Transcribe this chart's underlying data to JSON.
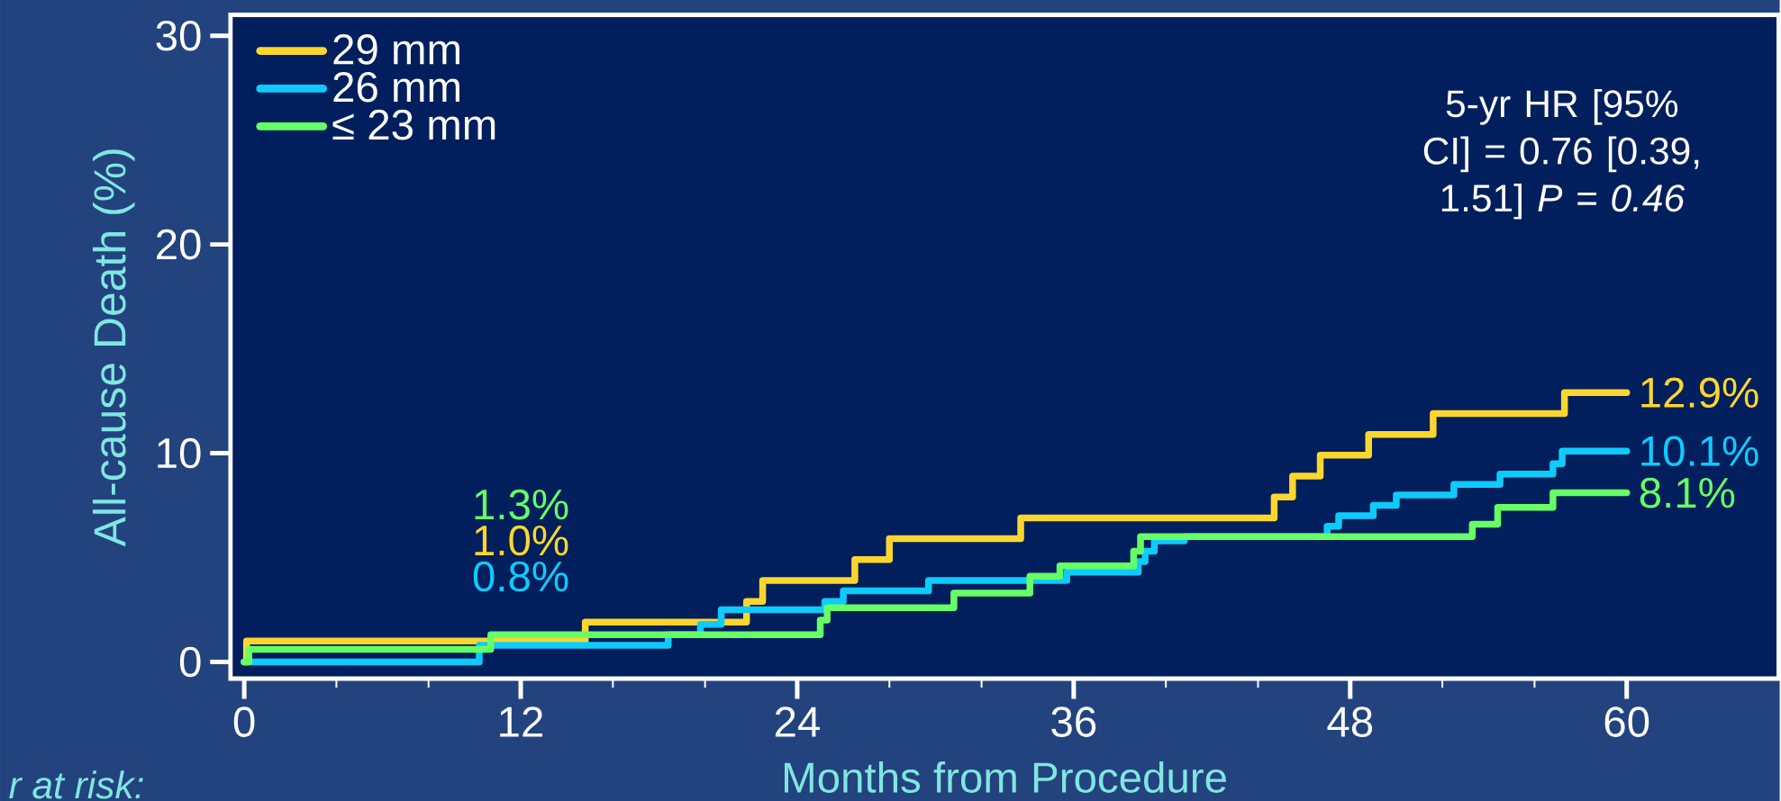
{
  "chart_data": {
    "type": "step",
    "xlabel": "Months from Procedure",
    "ylabel": "All-cause Death (%)",
    "xlim": [
      -0.6,
      66.6
    ],
    "ylim": [
      -0.8,
      31
    ],
    "xticks": [
      0,
      12,
      24,
      36,
      48,
      60
    ],
    "yticks": [
      0,
      10,
      20,
      30
    ],
    "grid": false,
    "legend": "top left",
    "marker": "none",
    "line_style": "solid",
    "annotations": [
      "5-yr HR [95% CI] = 0.76 [0.39, 1.51] *P = 0.46*",
      "r at risk:"
    ],
    "series": [
      {
        "name": "29 mm",
        "color": "#fcd62f",
        "x": [
          0,
          0.1,
          12,
          14.8,
          21.8,
          22.5,
          26.5,
          28,
          33.7,
          44.7,
          45.5,
          46.7,
          48.8,
          51.6,
          57.3,
          60
        ],
        "values": [
          0,
          1.0,
          1.0,
          1.9,
          2.9,
          3.9,
          4.9,
          5.9,
          6.9,
          7.9,
          8.9,
          9.9,
          10.9,
          11.9,
          12.9,
          12.9
        ],
        "value_labels": [
          null,
          null,
          "1.0%",
          null,
          null,
          null,
          null,
          null,
          null,
          null,
          null,
          null,
          null,
          null,
          null,
          "12.9%"
        ]
      },
      {
        "name": "26 mm",
        "color": "#0ecbfc",
        "x": [
          0,
          10.2,
          12,
          18.4,
          19.8,
          20.7,
          25.2,
          26,
          29.7,
          35.7,
          38.8,
          39.1,
          39.5,
          40.8,
          47,
          47.5,
          49,
          50,
          52.5,
          54.5,
          56.8,
          57.2,
          60
        ],
        "values": [
          0,
          0.8,
          0.8,
          1.3,
          1.8,
          2.5,
          2.9,
          3.4,
          3.9,
          4.3,
          4.8,
          5.3,
          5.8,
          6.0,
          6.5,
          7.0,
          7.5,
          8.0,
          8.5,
          9.0,
          9.5,
          10.1,
          10.1
        ],
        "value_labels": [
          null,
          null,
          "0.8%",
          null,
          null,
          null,
          null,
          null,
          null,
          null,
          null,
          null,
          null,
          null,
          null,
          null,
          null,
          null,
          null,
          null,
          null,
          null,
          "10.1%"
        ]
      },
      {
        "name": "≤ 23 mm",
        "color": "#66ff66",
        "x": [
          0,
          0.2,
          10.7,
          12,
          25,
          25.3,
          30.8,
          34.1,
          35.4,
          38.6,
          38.9,
          53.3,
          54.4,
          56.8,
          60
        ],
        "values": [
          0,
          0.6,
          1.3,
          1.3,
          2.0,
          2.6,
          3.3,
          4.1,
          4.6,
          5.3,
          6.0,
          6.6,
          7.4,
          8.1,
          8.1
        ],
        "value_labels": [
          null,
          null,
          null,
          "1.3%",
          null,
          null,
          null,
          null,
          null,
          null,
          null,
          null,
          null,
          null,
          "8.1%"
        ]
      }
    ]
  }
}
